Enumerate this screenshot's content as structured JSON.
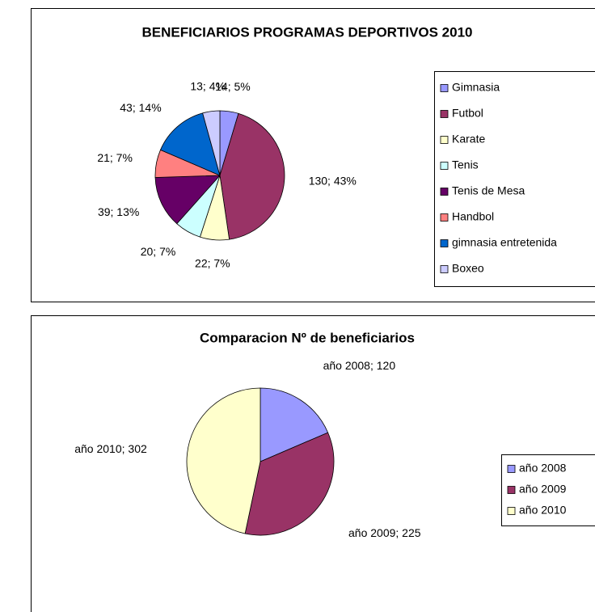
{
  "chart_data": [
    {
      "type": "pie",
      "title": "BENEFICIARIOS PROGRAMAS DEPORTIVOS 2010",
      "categories": [
        "Gimnasia",
        "Futbol",
        "Karate",
        "Tenis",
        "Tenis de Mesa",
        "Handbol",
        "gimnasia entretenida",
        "Boxeo"
      ],
      "values": [
        14,
        130,
        22,
        20,
        39,
        21,
        43,
        13
      ],
      "value_labels": [
        "14; 5%",
        "130; 43%",
        "22; 7%",
        "20; 7%",
        "39; 13%",
        "21; 7%",
        "43; 14%",
        "13; 4%"
      ],
      "colors": [
        "#9999ff",
        "#993366",
        "#ffffcc",
        "#ccffff",
        "#660066",
        "#ff8080",
        "#0066cc",
        "#ccccff"
      ],
      "legend": "right"
    },
    {
      "type": "pie",
      "title": "Comparacion  Nº de beneficiarios",
      "categories": [
        "año 2008",
        "año 2009",
        "año 2010"
      ],
      "values": [
        120,
        225,
        302
      ],
      "value_labels": [
        "año 2008; 120",
        "año 2009; 225",
        "año 2010; 302"
      ],
      "colors": [
        "#9999ff",
        "#993366",
        "#ffffcc"
      ],
      "legend": "right"
    }
  ]
}
